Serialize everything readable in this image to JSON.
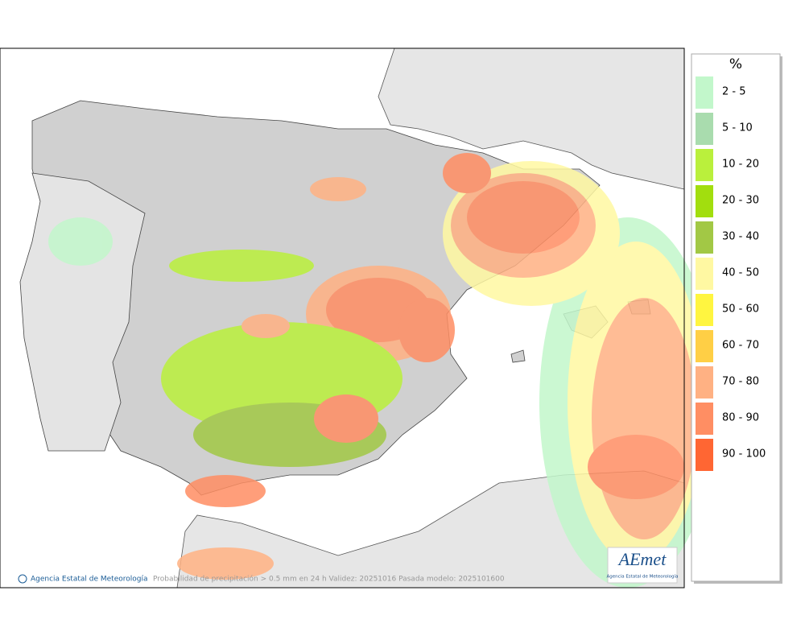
{
  "legend": {
    "title": "%",
    "items": [
      {
        "label": "2 - 5",
        "color": "#c2f7cb"
      },
      {
        "label": "5 - 10",
        "color": "#a9dcae"
      },
      {
        "label": "10 - 20",
        "color": "#baf03c"
      },
      {
        "label": "20 - 30",
        "color": "#a2de0e"
      },
      {
        "label": "30 - 40",
        "color": "#a2c845"
      },
      {
        "label": "40 - 50",
        "color": "#fff8a2"
      },
      {
        "label": "50 - 60",
        "color": "#fff540"
      },
      {
        "label": "60 - 70",
        "color": "#ffcf45"
      },
      {
        "label": "70 - 80",
        "color": "#ffb183"
      },
      {
        "label": "80 - 90",
        "color": "#ff8e63"
      },
      {
        "label": "90 - 100",
        "color": "#ff6633"
      }
    ]
  },
  "credit": "Agencia Estatal de Meteorología",
  "caption": "Probabilidad de precipitación > 0.5 mm en 24 h Validez: 20251016 Pasada modelo: 2025101600",
  "logo": {
    "name": "AEmet",
    "subtitle": "Agencia Estatal de Meteorología"
  }
}
